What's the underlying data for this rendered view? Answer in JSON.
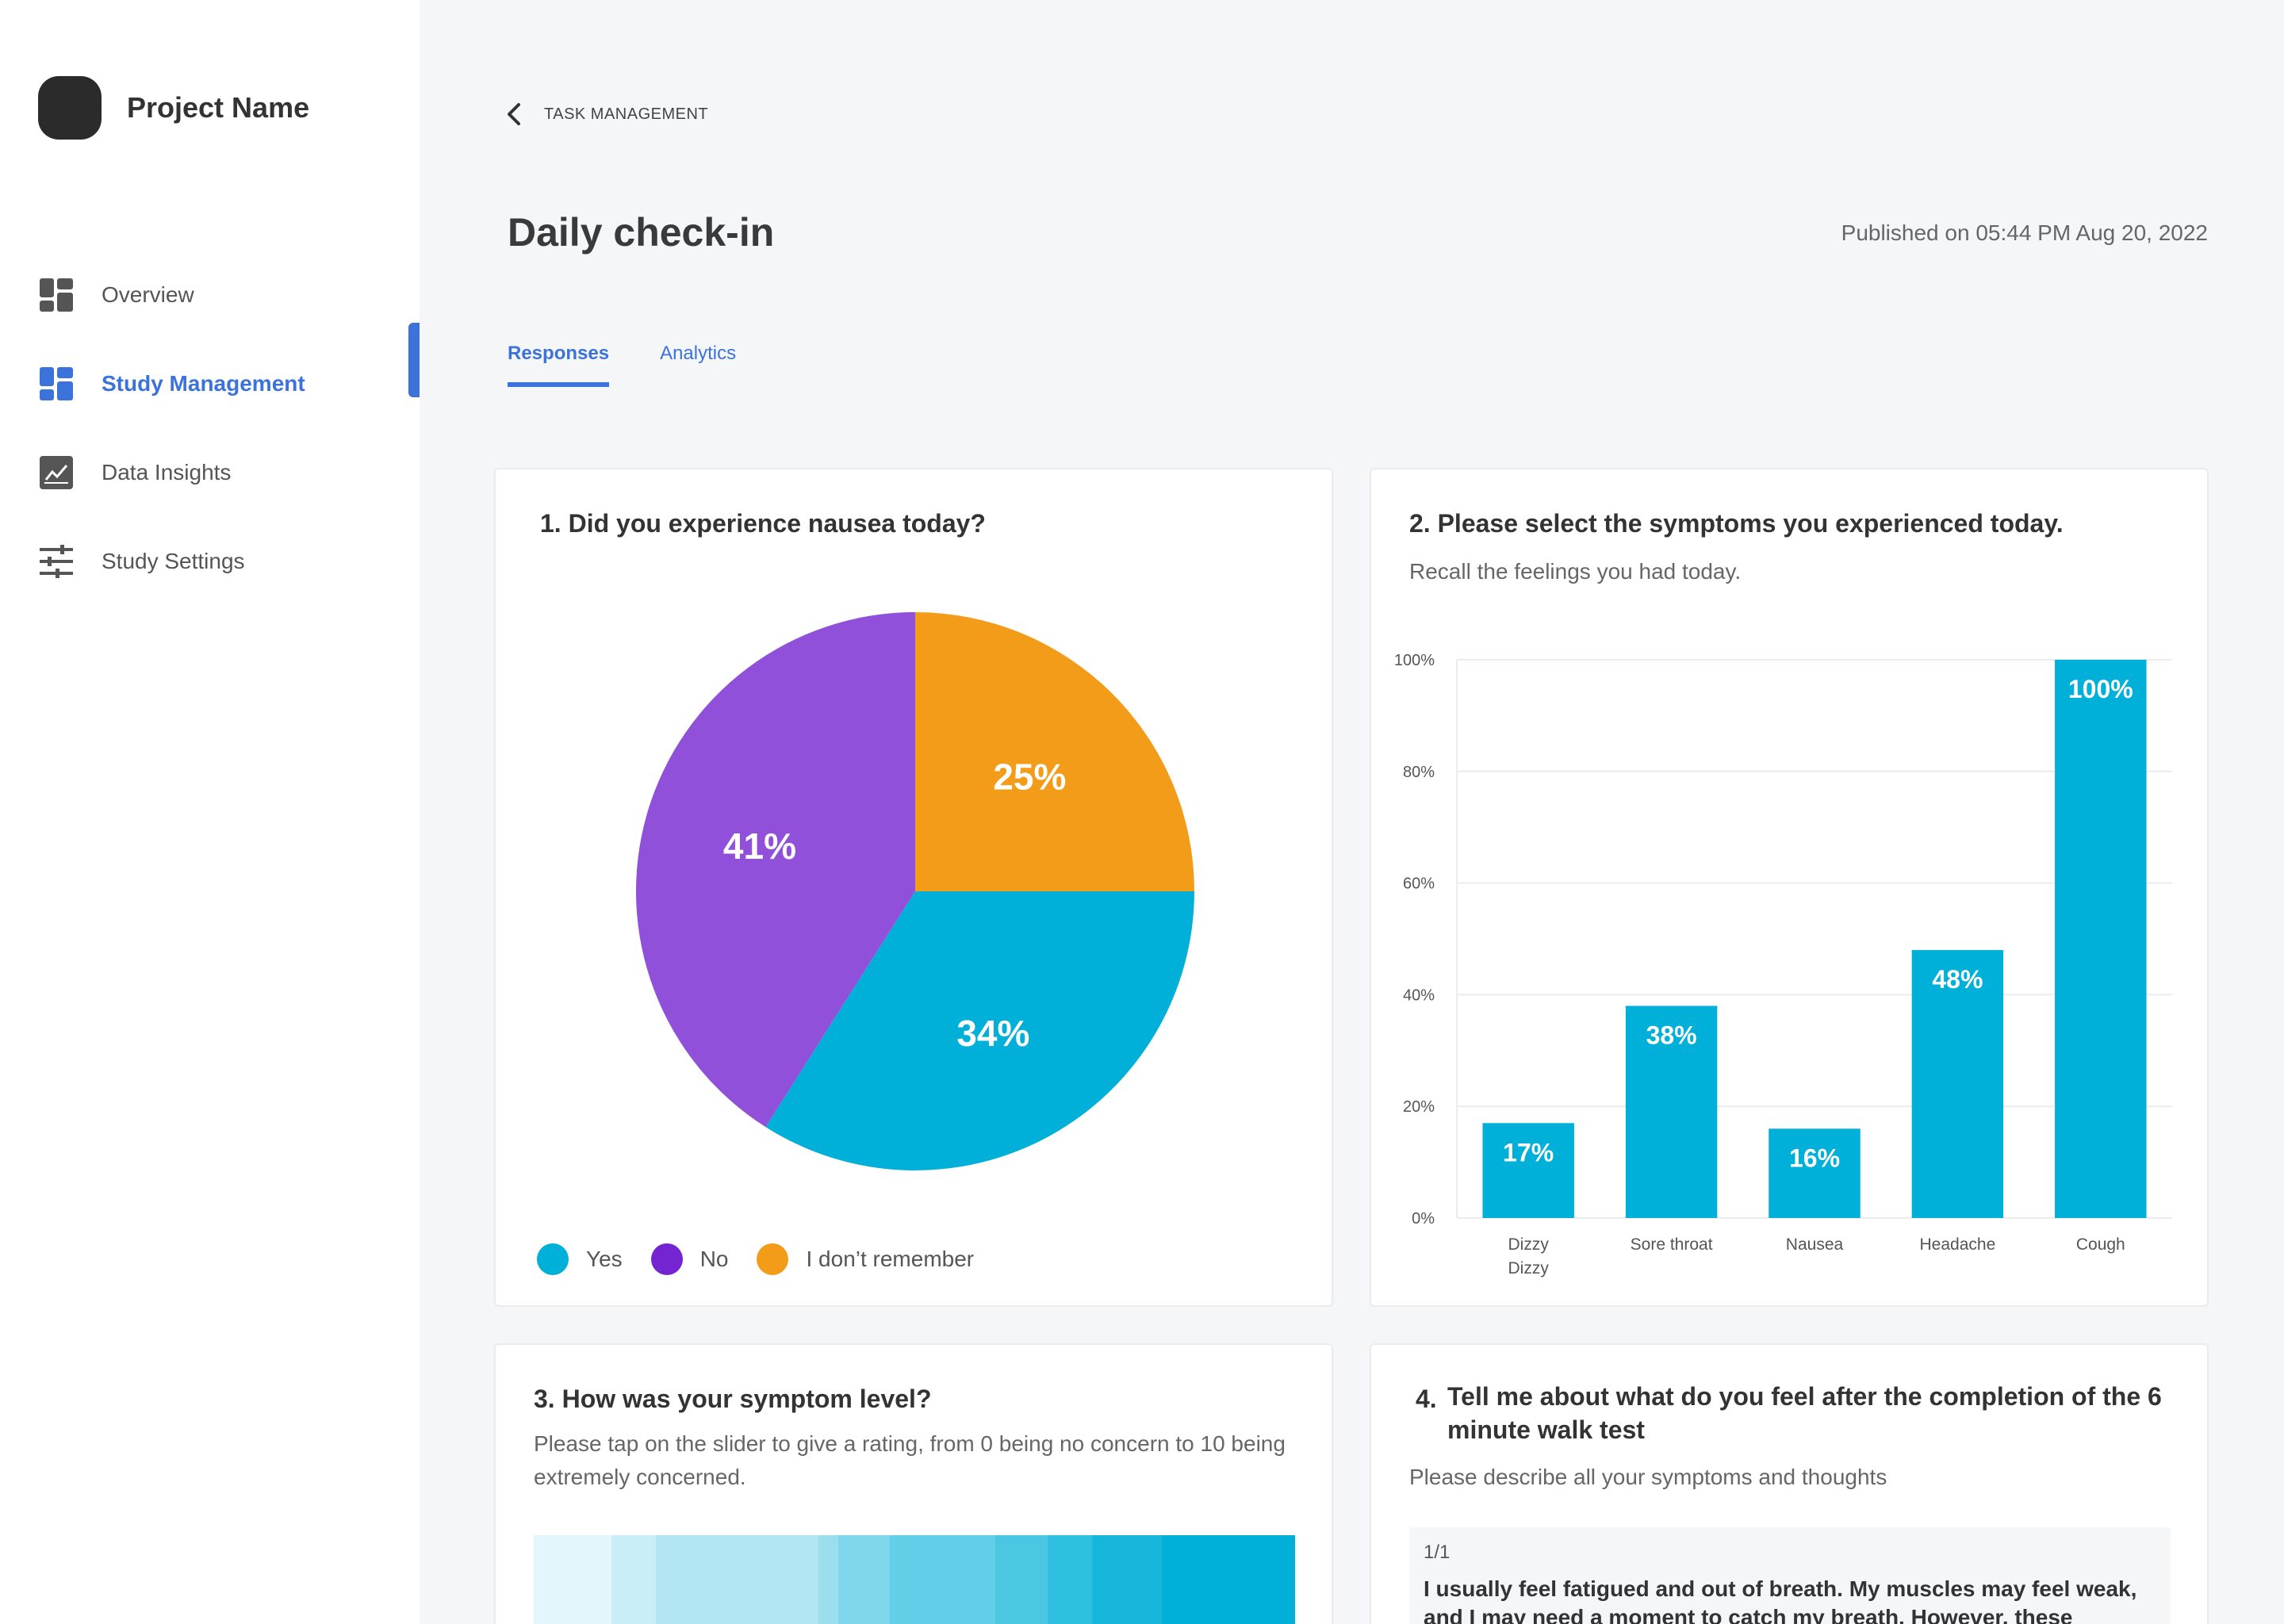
{
  "sidebar": {
    "project_name": "Project Name",
    "items": [
      {
        "label": "Overview",
        "icon": "dashboard-icon"
      },
      {
        "label": "Study Management",
        "icon": "dashboard-icon"
      },
      {
        "label": "Data Insights",
        "icon": "line-chart-icon"
      },
      {
        "label": "Study Settings",
        "icon": "sliders-icon"
      }
    ],
    "active_index": 1
  },
  "header": {
    "breadcrumb": "TASK MANAGEMENT",
    "title": "Daily check-in",
    "published": "Published on 05:44 PM Aug 20, 2022",
    "tabs": [
      {
        "label": "Responses",
        "active": true
      },
      {
        "label": "Analytics",
        "active": false
      }
    ]
  },
  "questions": {
    "q1": {
      "title": "1. Did you experience nausea today?"
    },
    "q2": {
      "title": "2. Please select the symptoms you experienced today.",
      "subtitle": "Recall the feelings you had today."
    },
    "q3": {
      "title": "3. How was your symptom level?",
      "subtitle": "Please tap on the slider to give a rating, from 0 being no concern to 10 being extremely concerned."
    },
    "q4": {
      "title_number": "4.",
      "title": "Tell me about what do you feel after the completion of the 6 minute walk test",
      "subtitle": "Please describe all your symptoms and thoughts",
      "response_count": "1/1",
      "response_text": "I usually feel fatigued and out of breath. My muscles may feel weak, and I may need a moment to catch my breath. However, these"
    }
  },
  "chart_data": [
    {
      "type": "pie",
      "slices": [
        {
          "label": "Yes",
          "value": 34,
          "color": "#00b0d8",
          "display": "34%"
        },
        {
          "label": "No",
          "value": 41,
          "color": "#9150d9",
          "display": "41%"
        },
        {
          "label": "I don't remember",
          "value": 25,
          "color": "#f29c19",
          "display": "25%"
        }
      ],
      "legend": [
        {
          "label": "Yes",
          "color": "#00b0d8"
        },
        {
          "label": "No",
          "color": "#7425d1"
        },
        {
          "label": "I don’t remember",
          "color": "#f29c19"
        }
      ],
      "legend_position": "bottom-left"
    },
    {
      "type": "bar",
      "categories": [
        "Dizzy",
        "Sore throat",
        "Nausea",
        "Headache",
        "Cough"
      ],
      "category_sublabels": [
        "Dizzy",
        "",
        "",
        "",
        ""
      ],
      "values": [
        17,
        38,
        16,
        48,
        100
      ],
      "value_labels": [
        "17%",
        "38%",
        "16%",
        "48%",
        "100%"
      ],
      "ylim": [
        0,
        100
      ],
      "yticks": [
        "0%",
        "20%",
        "40%",
        "60%",
        "80%",
        "100%"
      ],
      "color": "#00b0d8",
      "grid": true
    }
  ],
  "slider": {
    "colors": [
      "#e3f6fb",
      "#c9eef7",
      "#b2e6f3",
      "#9bdfef",
      "#7fd7eb",
      "#63cee7",
      "#4cc7e3",
      "#2fbfdf",
      "#16b7db",
      "#00b0d8"
    ]
  }
}
